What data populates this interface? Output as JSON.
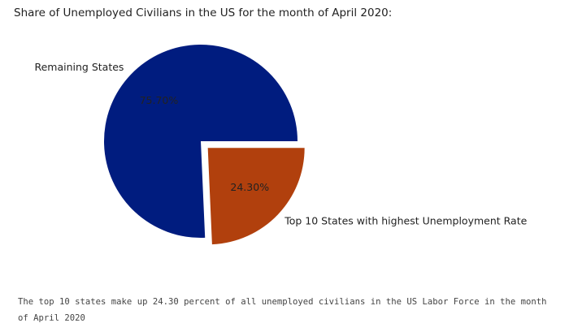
{
  "page": {
    "title": "Share of Unemployed Civilians in the US for the month of April 2020:",
    "caption": "The top 10 states make up 24.30 percent of all unemployed civilians in the US Labor Force in the month of April 2020"
  },
  "chart_data": {
    "type": "pie",
    "title": "",
    "slices": [
      {
        "label": "Remaining States",
        "value": 75.7,
        "value_label": "75.70%",
        "color": "#001c7f",
        "exploded": false
      },
      {
        "label": "Top 10 States with highest Unemployment Rate",
        "value": 24.3,
        "value_label": "24.30%",
        "color": "#b1400d",
        "exploded": true
      }
    ],
    "start_angle_deg": 0,
    "direction": "counterclockwise",
    "legend": "none"
  }
}
